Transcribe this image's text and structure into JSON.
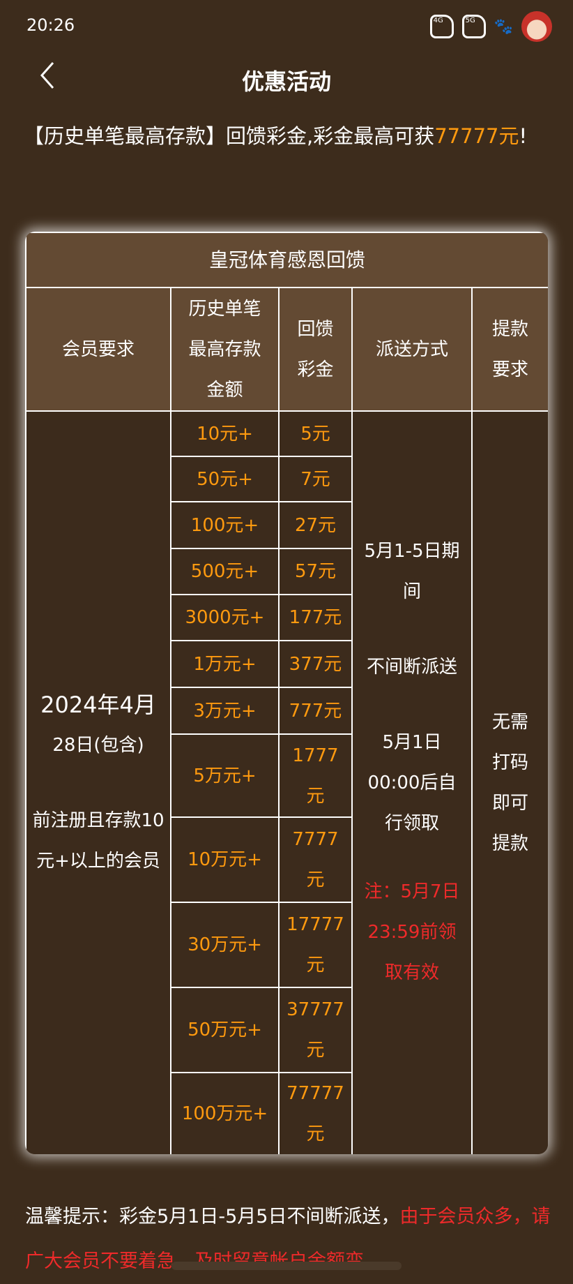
{
  "status_bar": {
    "time": "20:26",
    "icons": [
      "4g-signal-icon",
      "5g-signal-icon",
      "paw-icon",
      "avatar-icon"
    ],
    "labels": [
      "4G",
      "5G"
    ]
  },
  "header": {
    "title": "优惠活动",
    "back_icon": "chevron-left-icon"
  },
  "intro": {
    "text": "【历史单笔最高存款】回馈彩金,彩金最高可获",
    "highlight": "77777元",
    "end": "!"
  },
  "colors": {
    "background": "#3d2c1c",
    "header_cell": "#634a33",
    "accent": "#ff9a0f",
    "warning": "#ee2a2a"
  },
  "table": {
    "caption": "皇冠体育感恩回馈",
    "headers": [
      "会员要求",
      "历史单笔最高存款金额",
      "回馈彩金",
      "派送方式",
      "提款要求"
    ],
    "member_req": {
      "line1": "2024年4月",
      "line2": "28日(包含)",
      "line3": "前注册且存款10元+以上的会员"
    },
    "distribution": {
      "p1": "5月1-5日期间",
      "p2": "不间断派送",
      "p3": "5月1日00:00后自行领取",
      "note": "注：5月7日23:59前领取有效"
    },
    "withdraw": "无需打码即可提款",
    "rows": [
      {
        "deposit": "10元+",
        "bonus": "5元"
      },
      {
        "deposit": "50元+",
        "bonus": "7元"
      },
      {
        "deposit": "100元+",
        "bonus": "27元"
      },
      {
        "deposit": "500元+",
        "bonus": "57元"
      },
      {
        "deposit": "3000元+",
        "bonus": "177元"
      },
      {
        "deposit": "1万元+",
        "bonus": "377元"
      },
      {
        "deposit": "3万元+",
        "bonus": "777元"
      },
      {
        "deposit": "5万元+",
        "bonus": "1777元"
      },
      {
        "deposit": "10万元+",
        "bonus": "7777元"
      },
      {
        "deposit": "30万元+",
        "bonus": "17777元"
      },
      {
        "deposit": "50万元+",
        "bonus": "37777元"
      },
      {
        "deposit": "100万元+",
        "bonus": "77777元"
      }
    ]
  },
  "footer": {
    "text": "温馨提示：彩金5月1日-5月5日不间断派送，",
    "red": "由于会员众多，请广大会员不要着急，及时留意帐户余额变"
  }
}
